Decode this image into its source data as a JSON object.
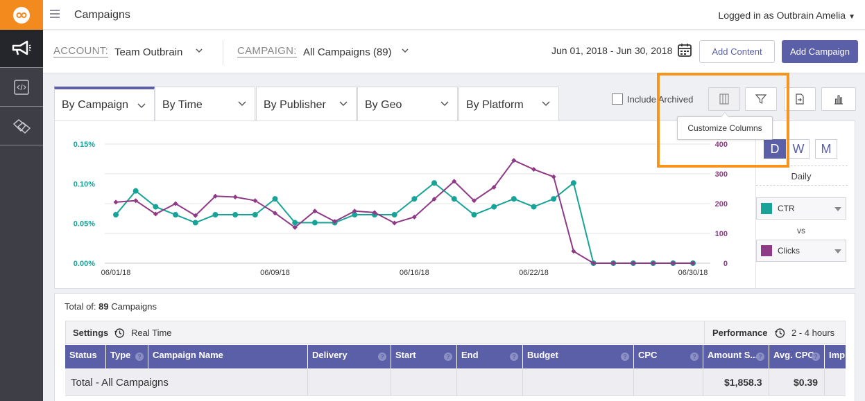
{
  "header": {
    "title": "Campaigns",
    "login": "Logged in as Outbrain Amelia"
  },
  "nav": {
    "items": [
      "campaigns",
      "code",
      "tags"
    ]
  },
  "account": {
    "label": "ACCOUNT:",
    "value": "Team Outbrain"
  },
  "campaign": {
    "label": "CAMPAIGN:",
    "value": "All Campaigns (89)"
  },
  "date_range": "Jun 01, 2018 - Jun 30, 2018",
  "buttons": {
    "add_content": "Add Content",
    "add_campaign": "Add Campaign"
  },
  "tabs": [
    "By Campaign",
    "By Time",
    "By Publisher",
    "By Geo",
    "By Platform"
  ],
  "include_archived": "Include Archived",
  "tooltip": "Customize Columns",
  "period": {
    "options": [
      "D",
      "W",
      "M"
    ],
    "selected": "D",
    "label": "Daily"
  },
  "metrics": {
    "primary": "CTR",
    "vs": "vs",
    "secondary": "Clicks",
    "primary_color": "#17a397",
    "secondary_color": "#8e3a86"
  },
  "chart_data": {
    "type": "line",
    "x_tick_labels": [
      "06/01/18",
      "06/09/18",
      "06/16/18",
      "06/22/18",
      "06/30/18"
    ],
    "y_left_ticks": [
      "0.00%",
      "0.05%",
      "0.10%",
      "0.15%"
    ],
    "y_right_ticks": [
      "0",
      "100",
      "200",
      "300",
      "400"
    ],
    "y_left_range": [
      0,
      0.15
    ],
    "y_right_range": [
      0,
      400
    ],
    "days": 30,
    "series": [
      {
        "name": "CTR",
        "axis": "left",
        "values": [
          0.061,
          0.091,
          0.071,
          0.061,
          0.051,
          0.061,
          0.061,
          0.061,
          0.081,
          0.051,
          0.051,
          0.051,
          0.061,
          0.061,
          0.061,
          0.081,
          0.101,
          0.081,
          0.061,
          0.071,
          0.081,
          0.071,
          0.081,
          0.101,
          0.0,
          0.0,
          0.0,
          0.0,
          0.0,
          0.0
        ]
      },
      {
        "name": "Clicks",
        "axis": "right",
        "values": [
          205,
          210,
          165,
          200,
          160,
          225,
          222,
          210,
          168,
          120,
          175,
          140,
          175,
          170,
          135,
          155,
          215,
          275,
          210,
          255,
          345,
          315,
          290,
          40,
          0,
          0,
          0,
          0,
          0,
          0
        ]
      }
    ]
  },
  "table": {
    "total_prefix": "Total of:",
    "total_count": "89",
    "total_suffix": "Campaigns",
    "settings_label": "Settings",
    "settings_time": "Real Time",
    "performance_label": "Performance",
    "performance_time": "2 - 4 hours",
    "columns": [
      "Status",
      "Type",
      "Campaign Name",
      "Delivery",
      "Start",
      "End",
      "Budget",
      "CPC",
      "Amount S...",
      "Avg. CPC",
      "Imp"
    ],
    "total_row": {
      "name": "Total - All Campaigns",
      "amount": "$1,858.3",
      "avg_cpc": "$0.39"
    }
  }
}
